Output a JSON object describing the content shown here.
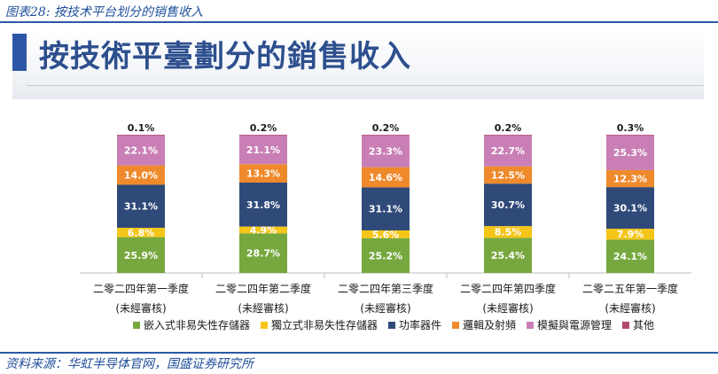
{
  "caption": "图表28: 按技术平台划分的销售收入",
  "banner_title": "按技術平臺劃分的銷售收入",
  "source": "资料来源：华虹半导体官网，国盛证券研究所",
  "chart_data": {
    "type": "bar",
    "stacked": true,
    "percent": true,
    "categories": [
      "二零二四年第一季度",
      "二零二四年第二季度",
      "二零二四年第三季度",
      "二零二四年第四季度",
      "二零二五年第一季度"
    ],
    "category_notes": [
      "(未經審核)",
      "(未經審核)",
      "(未經審核)",
      "(未經審核)",
      "(未經審核)"
    ],
    "series": [
      {
        "name": "嵌入式非易失性存儲器",
        "color": "#77a83f",
        "values": [
          25.9,
          28.7,
          25.2,
          25.4,
          24.1
        ]
      },
      {
        "name": "獨立式非易失性存儲器",
        "color": "#f5c518",
        "values": [
          6.8,
          4.9,
          5.6,
          8.5,
          7.9
        ]
      },
      {
        "name": "功率器件",
        "color": "#2f4a79",
        "values": [
          31.1,
          31.8,
          31.1,
          30.7,
          30.1
        ]
      },
      {
        "name": "邏輯及射頻",
        "color": "#ef8a2c",
        "values": [
          14.0,
          13.3,
          14.6,
          12.5,
          12.3
        ]
      },
      {
        "name": "模擬與電源管理",
        "color": "#c97fb5",
        "values": [
          22.1,
          21.1,
          23.3,
          22.7,
          25.3
        ]
      },
      {
        "name": "其他",
        "color": "#b04a6a",
        "values": [
          0.1,
          0.2,
          0.2,
          0.2,
          0.3
        ]
      }
    ],
    "labels": {
      "0": [
        "25.9%",
        "28.7%",
        "25.2%",
        "25.4%",
        "24.1%"
      ],
      "1": [
        "6.8%",
        "4.9%",
        "5.6%",
        "8.5%",
        "7.9%"
      ],
      "2": [
        "31.1%",
        "31.8%",
        "31.1%",
        "30.7%",
        "30.1%"
      ],
      "3": [
        "14.0%",
        "13.3%",
        "14.6%",
        "12.5%",
        "12.3%"
      ],
      "4": [
        "22.1%",
        "21.1%",
        "23.3%",
        "22.7%",
        "25.3%"
      ],
      "5": [
        "0.1%",
        "0.2%",
        "0.2%",
        "0.2%",
        "0.3%"
      ]
    },
    "ylim": [
      0,
      100
    ],
    "legend_position": "bottom"
  }
}
